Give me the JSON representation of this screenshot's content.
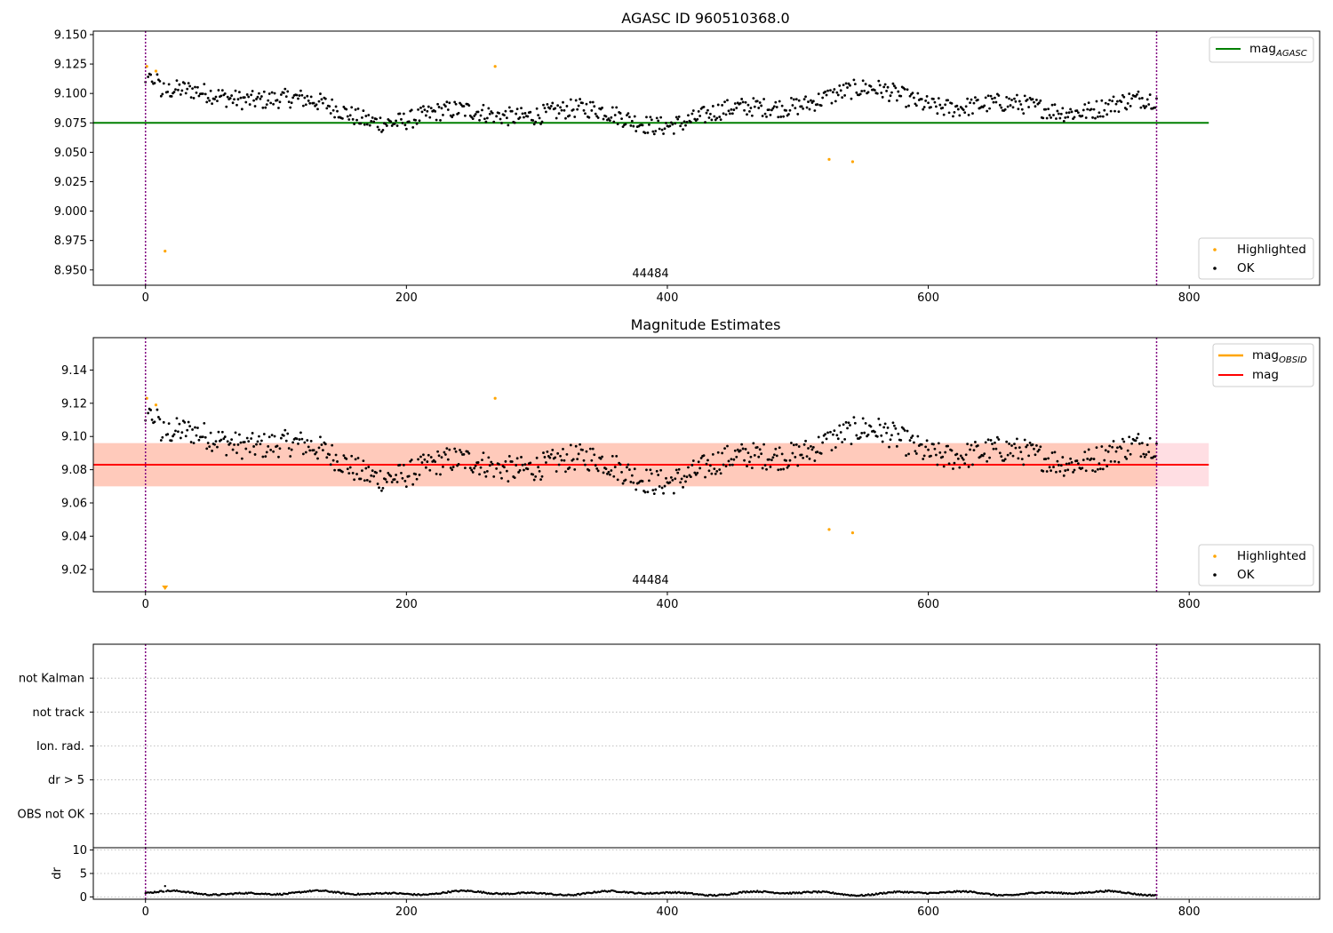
{
  "chart_data": [
    {
      "id": "agasc",
      "type": "scatter",
      "title": "AGASC ID 960510368.0",
      "xlim": [
        -40,
        900
      ],
      "ylim": [
        8.937,
        9.153
      ],
      "xticks": [
        0,
        200,
        400,
        600,
        800
      ],
      "yticks": [
        8.95,
        8.975,
        9.0,
        9.025,
        9.05,
        9.075,
        9.1,
        9.125,
        9.15
      ],
      "ytick_labels": [
        "8.950",
        "8.975",
        "9.000",
        "9.025",
        "9.050",
        "9.075",
        "9.100",
        "9.125",
        "9.150"
      ],
      "vlines": [
        0,
        775
      ],
      "annotation": {
        "text": "44484",
        "x": 387,
        "y": 8.948
      },
      "hline": {
        "name_main": "mag",
        "name_sub": "AGASC",
        "y": 9.075,
        "x_range": [
          -40,
          815
        ],
        "color": "#008000"
      },
      "ok_series": {
        "name": "OK",
        "color": "#000000",
        "base": 9.083,
        "amplitude": 0.013,
        "x_max": 775
      },
      "highlighted_series": {
        "name": "Highlighted",
        "color": "#ffa500",
        "x": [
          1,
          8,
          15,
          268,
          524,
          542
        ],
        "y": [
          9.123,
          9.119,
          8.966,
          9.123,
          9.044,
          9.042
        ]
      },
      "legend_top": "top-right",
      "legend_bottom": "bottom-right"
    },
    {
      "id": "estimates",
      "type": "scatter",
      "title": "Magnitude Estimates",
      "xlim": [
        -40,
        900
      ],
      "ylim": [
        9.0065,
        9.1595
      ],
      "xticks": [
        0,
        200,
        400,
        600,
        800
      ],
      "yticks": [
        9.02,
        9.04,
        9.06,
        9.08,
        9.1,
        9.12,
        9.14
      ],
      "ytick_labels": [
        "9.02",
        "9.04",
        "9.06",
        "9.08",
        "9.10",
        "9.12",
        "9.14"
      ],
      "vlines": [
        0,
        775
      ],
      "annotation": {
        "text": "44484",
        "x": 387,
        "y": 9.0095
      },
      "band_outer": {
        "y": [
          9.07,
          9.096
        ],
        "x_range": [
          -40,
          815
        ],
        "color": "#ffb6c1"
      },
      "band_inner": {
        "y": [
          9.07,
          9.096
        ],
        "x_range": [
          -40,
          775
        ],
        "color": "#ffb28a"
      },
      "mag_obsid": {
        "name_main": "mag",
        "name_sub": "OBSID",
        "y": 9.083,
        "x_range": [
          -40,
          775
        ],
        "color": "#ffa500"
      },
      "mag_line": {
        "name": "mag",
        "y": 9.083,
        "x_range": [
          -40,
          815
        ],
        "color": "#ff0000"
      },
      "ok_series": {
        "name": "OK",
        "color": "#000000",
        "base": 9.083,
        "amplitude": 0.013,
        "x_max": 775
      },
      "highlighted_series": {
        "name": "Highlighted",
        "color": "#ffa500",
        "x": [
          1,
          8,
          268,
          524,
          542
        ],
        "y": [
          9.123,
          9.119,
          9.123,
          9.044,
          9.042
        ]
      },
      "offscale_marker": {
        "x": 15,
        "color": "#ffa500"
      },
      "legend_top": "top-right",
      "legend_bottom": "bottom-right"
    },
    {
      "id": "flags",
      "type": "scatter",
      "title": "",
      "xlim": [
        -40,
        900
      ],
      "categories": [
        "not Kalman",
        "not track",
        "Ion. rad.",
        "dr > 5",
        "OBS not OK"
      ],
      "vlines": [
        0,
        775
      ],
      "grid": true
    },
    {
      "id": "dr",
      "type": "scatter",
      "title": "",
      "ylabel": "dr",
      "xlim": [
        -40,
        900
      ],
      "ylim": [
        -0.5,
        10.5
      ],
      "xticks": [
        0,
        200,
        400,
        600,
        800
      ],
      "yticks": [
        0,
        5,
        10
      ],
      "ytick_labels": [
        "0",
        "5",
        "10"
      ],
      "vlines": [
        0,
        775
      ],
      "dr_series": {
        "color": "#000000",
        "x_max": 775,
        "base": 0.8,
        "amplitude": 0.5
      },
      "grid": true
    }
  ]
}
